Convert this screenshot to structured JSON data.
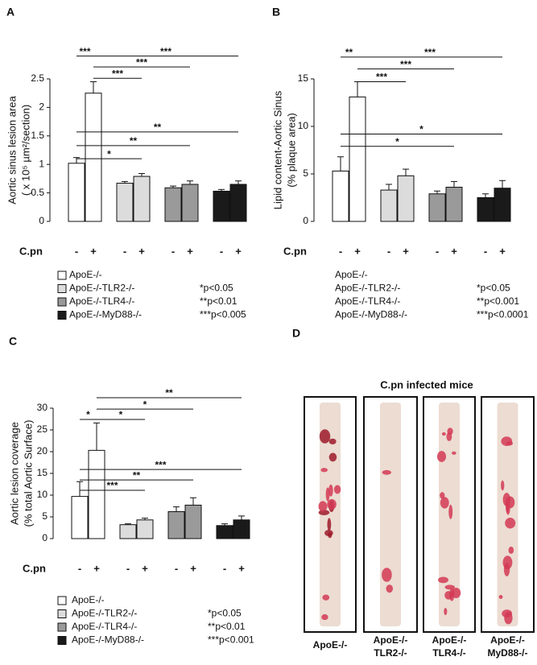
{
  "chart_data": [
    {
      "type": "bar",
      "panel": "A",
      "ylabel": [
        "Aortic sinus lesion area",
        "( x 10⁵ µm²/section)"
      ],
      "xlabel": "C.pn",
      "categories": [
        "-",
        "+"
      ],
      "series": [
        {
          "name": "ApoE-/-",
          "color": "#ffffff",
          "values": [
            1.02,
            2.25
          ],
          "errors": [
            0.1,
            0.2
          ]
        },
        {
          "name": "ApoE-/-TLR2-/-",
          "color": "#dcdcdc",
          "values": [
            0.67,
            0.79
          ],
          "errors": [
            0.03,
            0.05
          ]
        },
        {
          "name": "ApoE-/-TLR4-/-",
          "color": "#9a9a9a",
          "values": [
            0.59,
            0.65
          ],
          "errors": [
            0.03,
            0.06
          ]
        },
        {
          "name": "ApoE-/-MyD88-/-",
          "color": "#1a1a1a",
          "values": [
            0.53,
            0.65
          ],
          "errors": [
            0.03,
            0.06
          ]
        }
      ],
      "ylim": [
        0,
        2.5
      ],
      "yticks": [
        0,
        0.5,
        1,
        1.5,
        2,
        2.5
      ],
      "annotations": [
        {
          "text": "***",
          "from": 0,
          "to": 1,
          "y": 2.9
        },
        {
          "text": "***",
          "from": 1,
          "to": 7,
          "y": 2.9
        },
        {
          "text": "***",
          "from": 1,
          "to": 5,
          "y": 2.71
        },
        {
          "text": "***",
          "from": 1,
          "to": 3,
          "y": 2.51
        },
        {
          "text": "**",
          "from": 0,
          "to": 7,
          "y": 1.57
        },
        {
          "text": "**",
          "from": 0,
          "to": 5,
          "y": 1.33
        },
        {
          "text": "*",
          "from": 0,
          "to": 3,
          "y": 1.1
        }
      ],
      "notes": [
        "*p<0.05",
        "**p<0.01",
        "***p<0.005"
      ]
    },
    {
      "type": "bar",
      "panel": "B",
      "ylabel": [
        "Lipid content-Aortic Sinus",
        "(% plaque area)"
      ],
      "xlabel": "C.pn",
      "categories": [
        "-",
        "+"
      ],
      "series": [
        {
          "name": "ApoE-/-",
          "color": "#ffffff",
          "values": [
            5.3,
            13.1
          ],
          "errors": [
            1.5,
            1.6
          ]
        },
        {
          "name": "ApoE-/-TLR2-/-",
          "color": "#dcdcdc",
          "values": [
            3.3,
            4.8
          ],
          "errors": [
            0.6,
            0.7
          ]
        },
        {
          "name": "ApoE-/-TLR4-/-",
          "color": "#9a9a9a",
          "values": [
            2.9,
            3.6
          ],
          "errors": [
            0.3,
            0.6
          ]
        },
        {
          "name": "ApoE-/-MyD88-/-",
          "color": "#1a1a1a",
          "values": [
            2.5,
            3.5
          ],
          "errors": [
            0.4,
            0.8
          ]
        }
      ],
      "ylim": [
        0,
        15
      ],
      "yticks": [
        0,
        5,
        10,
        15
      ],
      "annotations": [
        {
          "text": "**",
          "from": 0,
          "to": 1,
          "y": 17.3
        },
        {
          "text": "***",
          "from": 1,
          "to": 7,
          "y": 17.3
        },
        {
          "text": "***",
          "from": 1,
          "to": 5,
          "y": 16.05
        },
        {
          "text": "***",
          "from": 1,
          "to": 3,
          "y": 14.7
        },
        {
          "text": "*",
          "from": 0,
          "to": 7,
          "y": 9.2
        },
        {
          "text": "*",
          "from": 0,
          "to": 5,
          "y": 7.9
        }
      ],
      "notes": [
        "*p<0.05",
        "**p<0.001",
        "***p<0.0001"
      ]
    },
    {
      "type": "bar",
      "panel": "C",
      "ylabel": [
        "Aortic lesion coverage",
        "(% total Aortic Surface)"
      ],
      "xlabel": "C.pn",
      "categories": [
        "-",
        "+"
      ],
      "series": [
        {
          "name": "ApoE-/-",
          "color": "#ffffff",
          "values": [
            9.7,
            20.3
          ],
          "errors": [
            3.4,
            6.3
          ]
        },
        {
          "name": "ApoE-/-TLR2-/-",
          "color": "#dcdcdc",
          "values": [
            3.2,
            4.3
          ],
          "errors": [
            0.2,
            0.4
          ]
        },
        {
          "name": "ApoE-/-TLR4-/-",
          "color": "#9a9a9a",
          "values": [
            6.2,
            7.7
          ],
          "errors": [
            1.1,
            1.7
          ]
        },
        {
          "name": "ApoE-/-MyD88-/-",
          "color": "#1a1a1a",
          "values": [
            3.0,
            4.3
          ],
          "errors": [
            0.4,
            0.9
          ]
        }
      ],
      "ylim": [
        0,
        30
      ],
      "yticks": [
        0,
        5,
        10,
        15,
        20,
        25,
        30
      ],
      "annotations": [
        {
          "text": "*",
          "from": 0,
          "to": 1,
          "y": 27.4
        },
        {
          "text": "*",
          "from": 1,
          "to": 3,
          "y": 27.4
        },
        {
          "text": "*",
          "from": 1,
          "to": 5,
          "y": 29.8
        },
        {
          "text": "**",
          "from": 1,
          "to": 7,
          "y": 32.4
        },
        {
          "text": "***",
          "from": 0,
          "to": 7,
          "y": 15.9
        },
        {
          "text": "**",
          "from": 0,
          "to": 5,
          "y": 13.5
        },
        {
          "text": "***",
          "from": 0,
          "to": 3,
          "y": 11.1
        }
      ],
      "notes": [
        "*p<0.05",
        "**p<0.01",
        "***p<0.001"
      ]
    }
  ],
  "panel_d": {
    "label": "D",
    "title": "C.pn infected mice",
    "captions": [
      [
        "ApoE-/-"
      ],
      [
        "ApoE-/-",
        "TLR2-/-"
      ],
      [
        "ApoE-/-",
        "TLR4-/-"
      ],
      [
        "ApoE-/-",
        "MyD88-/-"
      ]
    ]
  }
}
